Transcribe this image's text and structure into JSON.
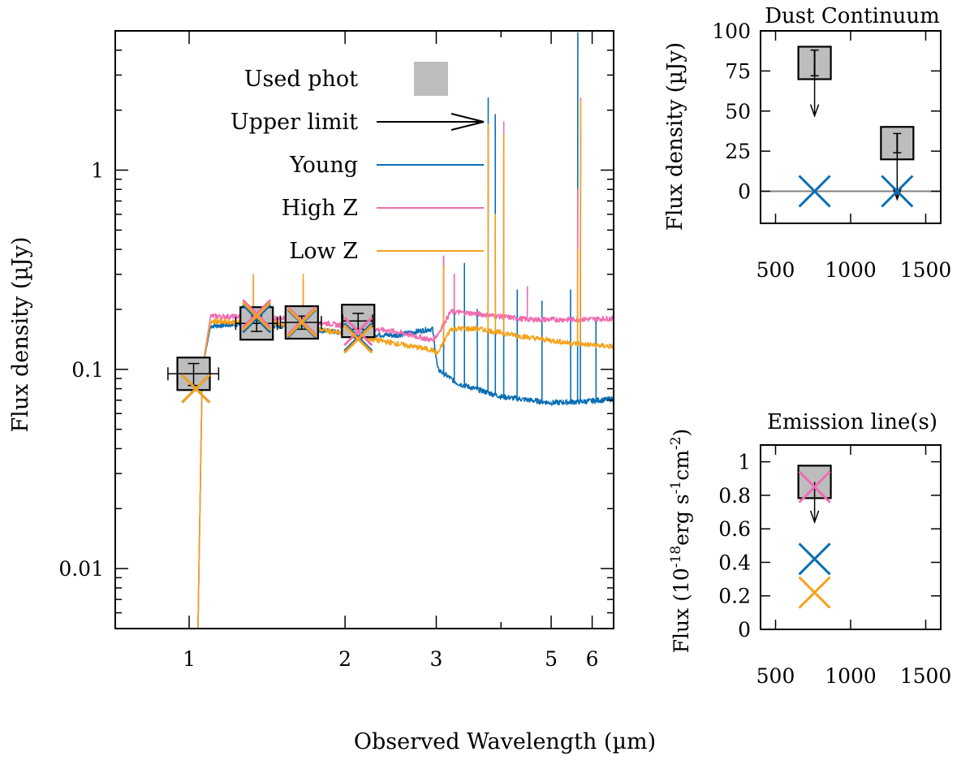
{
  "colors": {
    "young": "#0a6eb4",
    "highz": "#f06cb2",
    "lowz": "#f5a21b",
    "phot_fill": "#bdbdbd",
    "zero_line": "#808080"
  },
  "chart_data": [
    {
      "id": "sed",
      "type": "line",
      "xscale": "log",
      "yscale": "log",
      "xlabel": "Observed Wavelength (µm)",
      "ylabel": "Flux density (µJy)",
      "xlim": [
        0.72,
        6.6
      ],
      "ylim": [
        0.005,
        5
      ],
      "xticks": [
        1,
        2,
        3,
        5,
        6
      ],
      "yticks": [
        0.01,
        0.1,
        1
      ],
      "ytick_labels": [
        "0.01",
        "0.1",
        "1"
      ],
      "legend": {
        "position": "top-center",
        "entries": [
          {
            "label": "Used phot",
            "kind": "box"
          },
          {
            "label": "Upper limit",
            "kind": "arrow"
          },
          {
            "label": "Young",
            "kind": "line",
            "color_key": "young"
          },
          {
            "label": "High Z",
            "kind": "line",
            "color_key": "highz"
          },
          {
            "label": "Low Z",
            "kind": "line",
            "color_key": "lowz"
          }
        ]
      },
      "photometry": [
        {
          "x": 1.02,
          "y": 0.095,
          "xerr": [
            0.11,
            0.12
          ],
          "yerr": [
            0.012,
            0.012
          ]
        },
        {
          "x": 1.35,
          "y": 0.17,
          "xerr": [
            0.12,
            0.13
          ],
          "yerr": [
            0.015,
            0.015
          ]
        },
        {
          "x": 1.65,
          "y": 0.172,
          "xerr": [
            0.15,
            0.15
          ],
          "yerr": [
            0.013,
            0.013
          ]
        },
        {
          "x": 2.12,
          "y": 0.175,
          "xerr": [
            0.14,
            0.14
          ],
          "yerr": [
            0.016,
            0.016
          ]
        }
      ],
      "model_photometry": [
        {
          "name": "Young",
          "color_key": "young",
          "points": [
            [
              1.03,
              0.08
            ],
            [
              1.35,
              0.18
            ],
            [
              1.65,
              0.17
            ],
            [
              2.12,
              0.145
            ]
          ]
        },
        {
          "name": "High Z",
          "color_key": "highz",
          "points": [
            [
              1.35,
              0.19
            ],
            [
              1.65,
              0.175
            ],
            [
              2.12,
              0.155
            ]
          ]
        },
        {
          "name": "Low Z",
          "color_key": "lowz",
          "points": [
            [
              1.03,
              0.08
            ],
            [
              1.35,
              0.185
            ],
            [
              1.65,
              0.172
            ],
            [
              2.12,
              0.142
            ]
          ]
        }
      ],
      "series": [
        {
          "name": "Young",
          "color_key": "young",
          "continuum": [
            [
              1.04,
              0.005
            ],
            [
              1.06,
              0.1
            ],
            [
              1.1,
              0.165
            ],
            [
              1.3,
              0.17
            ],
            [
              1.6,
              0.163
            ],
            [
              2.0,
              0.152
            ],
            [
              2.5,
              0.148
            ],
            [
              2.95,
              0.16
            ],
            [
              3.02,
              0.1
            ],
            [
              3.3,
              0.085
            ],
            [
              4.0,
              0.073
            ],
            [
              5.0,
              0.068
            ],
            [
              5.8,
              0.069
            ],
            [
              6.6,
              0.071
            ]
          ],
          "lines": [
            [
              3.1,
              0.37
            ],
            [
              3.25,
              0.3
            ],
            [
              3.4,
              0.34
            ],
            [
              3.6,
              0.2
            ],
            [
              3.78,
              2.3
            ],
            [
              3.9,
              1.9
            ],
            [
              4.05,
              1.3
            ],
            [
              4.3,
              0.25
            ],
            [
              4.8,
              0.22
            ],
            [
              5.45,
              0.25
            ],
            [
              5.63,
              4.9
            ],
            [
              5.7,
              1.6
            ],
            [
              6.1,
              0.18
            ]
          ]
        },
        {
          "name": "High Z",
          "color_key": "highz",
          "continuum": [
            [
              1.04,
              0.005
            ],
            [
              1.06,
              0.1
            ],
            [
              1.1,
              0.185
            ],
            [
              1.3,
              0.183
            ],
            [
              1.6,
              0.18
            ],
            [
              2.0,
              0.165
            ],
            [
              2.5,
              0.155
            ],
            [
              2.95,
              0.14
            ],
            [
              3.02,
              0.15
            ],
            [
              3.2,
              0.195
            ],
            [
              3.6,
              0.19
            ],
            [
              4.5,
              0.178
            ],
            [
              5.5,
              0.178
            ],
            [
              6.6,
              0.18
            ]
          ],
          "lines": [
            [
              1.33,
              0.28
            ],
            [
              1.66,
              0.28
            ],
            [
              3.1,
              0.37
            ],
            [
              3.25,
              0.3
            ],
            [
              3.78,
              1.6
            ],
            [
              3.9,
              0.5
            ],
            [
              4.05,
              1.75
            ],
            [
              4.5,
              0.26
            ],
            [
              5.63,
              0.8
            ],
            [
              5.7,
              2.3
            ]
          ]
        },
        {
          "name": "Low Z",
          "color_key": "lowz",
          "continuum": [
            [
              1.04,
              0.005
            ],
            [
              1.06,
              0.1
            ],
            [
              1.1,
              0.175
            ],
            [
              1.3,
              0.172
            ],
            [
              1.6,
              0.168
            ],
            [
              2.0,
              0.15
            ],
            [
              2.5,
              0.135
            ],
            [
              2.95,
              0.125
            ],
            [
              3.02,
              0.12
            ],
            [
              3.2,
              0.16
            ],
            [
              3.6,
              0.16
            ],
            [
              4.5,
              0.145
            ],
            [
              5.5,
              0.135
            ],
            [
              6.6,
              0.13
            ]
          ],
          "lines": [
            [
              1.33,
              0.3
            ],
            [
              1.66,
              0.3
            ],
            [
              3.1,
              0.33
            ],
            [
              3.78,
              1.7
            ],
            [
              3.9,
              0.6
            ],
            [
              4.05,
              1.5
            ],
            [
              5.63,
              0.4
            ],
            [
              5.7,
              2.2
            ]
          ]
        }
      ]
    },
    {
      "id": "dust",
      "type": "scatter",
      "title": "Dust Continuum",
      "ylabel": "Flux density (µJy)",
      "xlim": [
        400,
        1600
      ],
      "ylim": [
        -20,
        100
      ],
      "xticks": [
        500,
        1000,
        1500
      ],
      "yticks": [
        0,
        25,
        50,
        75,
        100
      ],
      "upper_limits": [
        {
          "x": 760,
          "y": 80,
          "yerr": 8,
          "arrow_to": 47
        },
        {
          "x": 1310,
          "y": 30,
          "yerr": 6,
          "arrow_to": -5
        }
      ],
      "model_points": [
        {
          "x": 760,
          "y": 0,
          "color_key": "young"
        },
        {
          "x": 1310,
          "y": 0,
          "color_key": "young"
        }
      ],
      "zero_line": 0
    },
    {
      "id": "lines",
      "type": "scatter",
      "title": "Emission line(s)",
      "ylabel": "Flux (10^-18 erg s^-1 cm^-2)",
      "ylabel_parts": {
        "pre": "Flux (10",
        "exp1": "-18",
        "mid": "erg s",
        "exp2": "-1",
        "mid2": "cm",
        "exp3": "-2",
        "post": ")"
      },
      "xlim": [
        400,
        1600
      ],
      "ylim": [
        0,
        1.1
      ],
      "xticks": [
        500,
        1000,
        1500
      ],
      "yticks": [
        0,
        0.2,
        0.4,
        0.6,
        0.8,
        1
      ],
      "ytick_labels": [
        "0",
        "0.2",
        "0.4",
        "0.6",
        "0.8",
        "1"
      ],
      "upper_limits": [
        {
          "x": 760,
          "y": 0.88,
          "arrow_to": 0.64
        }
      ],
      "model_points": [
        {
          "x": 760,
          "y": 0.85,
          "color_key": "highz"
        },
        {
          "x": 760,
          "y": 0.42,
          "color_key": "young"
        },
        {
          "x": 760,
          "y": 0.22,
          "color_key": "lowz"
        }
      ]
    }
  ]
}
